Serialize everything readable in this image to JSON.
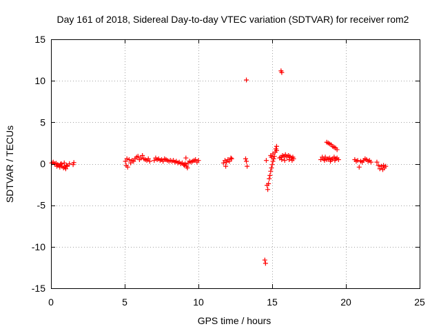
{
  "chart_data": {
    "type": "scatter",
    "title": "Day 161 of 2018, Sidereal Day-to-day VTEC variation (SDTVAR) for receiver rom2",
    "xlabel": "GPS time / hours",
    "ylabel": "SDTVAR / TECUs",
    "xlim": [
      0,
      25
    ],
    "ylim": [
      -15,
      15
    ],
    "x_ticks": [
      0,
      5,
      10,
      15,
      20,
      25
    ],
    "y_ticks": [
      -15,
      -10,
      -5,
      0,
      5,
      10,
      15
    ],
    "x_tick_labels": [
      "0",
      "5",
      "10",
      "15",
      "20",
      "25"
    ],
    "y_tick_labels": [
      "-15",
      "-10",
      "-5",
      "0",
      "5",
      "10",
      "15"
    ],
    "grid": true,
    "marker": "plus",
    "series_color": "#ff0000",
    "series": [
      {
        "name": "rom2",
        "points": [
          [
            0.05,
            0.1
          ],
          [
            0.15,
            0.2
          ],
          [
            0.25,
            0.0
          ],
          [
            0.35,
            0.05
          ],
          [
            0.45,
            -0.1
          ],
          [
            0.55,
            -0.2
          ],
          [
            0.65,
            -0.05
          ],
          [
            0.75,
            -0.3
          ],
          [
            0.85,
            -0.5
          ],
          [
            0.95,
            -0.4
          ],
          [
            1.05,
            -0.2
          ],
          [
            0.9,
            0.1
          ],
          [
            0.7,
            0.0
          ],
          [
            1.1,
            -0.3
          ],
          [
            1.25,
            0.0
          ],
          [
            1.5,
            -0.1
          ],
          [
            1.55,
            0.15
          ],
          [
            0.4,
            -0.3
          ],
          [
            0.6,
            -0.4
          ],
          [
            1.0,
            -0.6
          ],
          [
            5.05,
            0.3
          ],
          [
            5.1,
            -0.2
          ],
          [
            5.15,
            0.6
          ],
          [
            5.2,
            -0.4
          ],
          [
            5.3,
            0.5
          ],
          [
            5.4,
            0.1
          ],
          [
            5.5,
            0.4
          ],
          [
            5.6,
            0.3
          ],
          [
            5.7,
            0.6
          ],
          [
            5.8,
            0.8
          ],
          [
            5.9,
            0.9
          ],
          [
            6.0,
            0.5
          ],
          [
            6.1,
            0.7
          ],
          [
            6.2,
            1.0
          ],
          [
            6.3,
            0.6
          ],
          [
            6.4,
            0.5
          ],
          [
            6.5,
            0.4
          ],
          [
            6.6,
            0.6
          ],
          [
            6.7,
            0.3
          ],
          [
            7.0,
            0.4
          ],
          [
            7.1,
            0.7
          ],
          [
            7.2,
            0.5
          ],
          [
            7.3,
            0.6
          ],
          [
            7.4,
            0.4
          ],
          [
            7.5,
            0.5
          ],
          [
            7.6,
            0.3
          ],
          [
            7.7,
            0.6
          ],
          [
            7.8,
            0.5
          ],
          [
            7.9,
            0.4
          ],
          [
            8.0,
            0.3
          ],
          [
            8.1,
            0.4
          ],
          [
            8.2,
            0.3
          ],
          [
            8.3,
            0.4
          ],
          [
            8.4,
            0.2
          ],
          [
            8.5,
            0.3
          ],
          [
            8.6,
            0.1
          ],
          [
            8.7,
            0.2
          ],
          [
            8.8,
            0.0
          ],
          [
            8.9,
            0.1
          ],
          [
            9.0,
            -0.1
          ],
          [
            9.1,
            0.0
          ],
          [
            9.2,
            -0.3
          ],
          [
            9.3,
            0.1
          ],
          [
            9.4,
            0.3
          ],
          [
            9.5,
            0.2
          ],
          [
            9.6,
            0.3
          ],
          [
            9.7,
            0.4
          ],
          [
            9.8,
            0.5
          ],
          [
            9.9,
            0.2
          ],
          [
            10.0,
            0.4
          ],
          [
            9.15,
            0.7
          ],
          [
            9.25,
            -0.5
          ],
          [
            9.05,
            -0.2
          ],
          [
            11.7,
            0.1
          ],
          [
            11.8,
            0.4
          ],
          [
            11.85,
            -0.3
          ],
          [
            11.9,
            0.2
          ],
          [
            12.0,
            0.5
          ],
          [
            12.1,
            0.3
          ],
          [
            12.2,
            0.7
          ],
          [
            12.25,
            0.6
          ],
          [
            13.2,
            0.6
          ],
          [
            13.25,
            0.3
          ],
          [
            13.3,
            -0.3
          ],
          [
            13.25,
            10.1
          ],
          [
            14.6,
            0.4
          ],
          [
            14.65,
            -2.6
          ],
          [
            14.7,
            -3.1
          ],
          [
            14.75,
            -2.4
          ],
          [
            14.8,
            -1.8
          ],
          [
            14.85,
            -1.4
          ],
          [
            14.9,
            -0.9
          ],
          [
            14.95,
            -0.5
          ],
          [
            15.0,
            -0.1
          ],
          [
            15.05,
            0.3
          ],
          [
            15.1,
            0.6
          ],
          [
            15.15,
            0.9
          ],
          [
            15.2,
            1.4
          ],
          [
            15.25,
            1.8
          ],
          [
            15.3,
            2.1
          ],
          [
            14.9,
            1.0
          ],
          [
            14.95,
            0.8
          ],
          [
            15.05,
            1.2
          ],
          [
            15.3,
            1.6
          ],
          [
            15.5,
            0.7
          ],
          [
            15.6,
            0.8
          ],
          [
            15.7,
            1.0
          ],
          [
            15.8,
            0.9
          ],
          [
            15.9,
            1.1
          ],
          [
            16.0,
            0.8
          ],
          [
            16.1,
            1.0
          ],
          [
            16.2,
            0.9
          ],
          [
            16.3,
            0.7
          ],
          [
            16.4,
            0.8
          ],
          [
            16.45,
            0.6
          ],
          [
            15.65,
            0.5
          ],
          [
            15.85,
            0.4
          ],
          [
            16.15,
            0.5
          ],
          [
            16.35,
            0.4
          ],
          [
            15.6,
            11.2
          ],
          [
            15.65,
            11.0
          ],
          [
            14.5,
            -11.6
          ],
          [
            14.55,
            -12.0
          ],
          [
            18.3,
            0.5
          ],
          [
            18.4,
            0.8
          ],
          [
            18.5,
            0.6
          ],
          [
            18.6,
            0.8
          ],
          [
            18.7,
            0.5
          ],
          [
            18.8,
            0.6
          ],
          [
            18.9,
            0.7
          ],
          [
            19.0,
            0.5
          ],
          [
            19.1,
            0.6
          ],
          [
            19.2,
            0.8
          ],
          [
            19.3,
            0.6
          ],
          [
            19.4,
            0.7
          ],
          [
            19.5,
            0.5
          ],
          [
            18.55,
            0.4
          ],
          [
            18.95,
            0.3
          ],
          [
            19.25,
            0.4
          ],
          [
            18.7,
            2.6
          ],
          [
            18.8,
            2.5
          ],
          [
            18.9,
            2.4
          ],
          [
            19.0,
            2.3
          ],
          [
            19.1,
            2.1
          ],
          [
            19.2,
            2.0
          ],
          [
            19.3,
            1.9
          ],
          [
            19.4,
            1.7
          ],
          [
            20.6,
            0.5
          ],
          [
            20.7,
            0.3
          ],
          [
            20.8,
            0.4
          ],
          [
            20.9,
            -0.4
          ],
          [
            21.0,
            0.3
          ],
          [
            21.1,
            0.2
          ],
          [
            21.2,
            0.4
          ],
          [
            21.3,
            0.6
          ],
          [
            21.4,
            0.5
          ],
          [
            21.5,
            0.3
          ],
          [
            21.6,
            0.4
          ],
          [
            21.7,
            0.2
          ],
          [
            22.1,
            0.2
          ],
          [
            22.2,
            -0.2
          ],
          [
            22.3,
            -0.6
          ],
          [
            22.4,
            -0.3
          ],
          [
            22.5,
            -0.7
          ],
          [
            22.55,
            -0.2
          ],
          [
            22.6,
            -0.5
          ],
          [
            22.7,
            -0.3
          ]
        ]
      }
    ]
  }
}
